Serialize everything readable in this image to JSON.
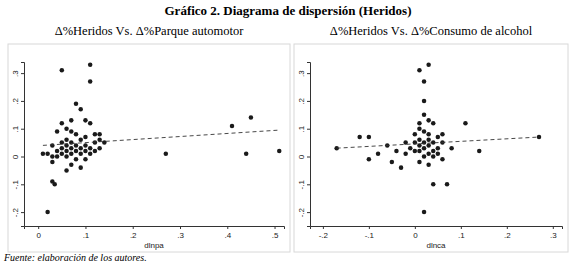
{
  "title": "Gráfico 2. Diagrama de dispersión (Heridos)",
  "source": "Fuente: elaboración de los autores.",
  "chart_data": [
    {
      "type": "scatter",
      "title": "Δ%Heridos Vs. Δ%Parque automotor",
      "xlabel": "dlnpa",
      "xlim": [
        -0.03,
        0.52
      ],
      "ylim": [
        -0.25,
        0.34
      ],
      "xticks": [
        0,
        {
          "value": 0.1,
          "label": ".1"
        },
        {
          "value": 0.2,
          "label": ".2"
        },
        {
          "value": 0.3,
          "label": ".3"
        },
        {
          "value": 0.4,
          "label": ".4"
        },
        {
          "value": 0.5,
          "label": ".5"
        }
      ],
      "yticks": [
        {
          "value": -0.2,
          "label": "-.2"
        },
        {
          "value": -0.1,
          "label": "-.1"
        },
        0,
        {
          "value": 0.1,
          "label": ".1"
        },
        {
          "value": 0.2,
          "label": ".2"
        },
        {
          "value": 0.3,
          "label": ".3"
        }
      ],
      "series": [
        {
          "type": "scatter",
          "marker": "circle",
          "color": "#1a1a1a",
          "x": [
            0.02,
            0.03,
            0.035,
            0.05,
            0.11,
            0.11,
            0.08,
            0.09,
            0.1,
            0.07,
            0.11,
            0.05,
            0.06,
            0.04,
            0.07,
            0.08,
            0.12,
            0.13,
            0.1,
            0.09,
            0.06,
            0.05,
            0.07,
            0.12,
            0.14,
            0.03,
            0.06,
            0.08,
            0.1,
            0.11,
            0.05,
            0.07,
            0.09,
            0.13,
            0.04,
            0.06,
            0.08,
            0.1,
            0.12,
            0.02,
            0.05,
            0.07,
            0.09,
            0.11,
            0.04,
            0.06,
            0.08,
            0.1,
            0.03,
            0.07,
            0.09,
            0.06,
            0.13,
            0.27,
            0.41,
            0.45,
            0.44,
            0.51,
            0.01,
            0.03
          ],
          "values": [
            -0.2,
            -0.09,
            -0.1,
            0.31,
            0.33,
            0.27,
            0.19,
            0.17,
            0.13,
            0.13,
            0.12,
            0.12,
            0.1,
            0.09,
            0.09,
            0.08,
            0.08,
            0.08,
            0.07,
            0.06,
            0.06,
            0.05,
            0.05,
            0.05,
            0.05,
            0.04,
            0.04,
            0.04,
            0.04,
            0.03,
            0.03,
            0.03,
            0.03,
            0.03,
            0.02,
            0.02,
            0.02,
            0.02,
            0.02,
            0.01,
            0.01,
            0.01,
            0.01,
            0.01,
            0,
            0,
            -0.01,
            -0.01,
            -0.02,
            -0.03,
            -0.04,
            -0.05,
            0.06,
            0.01,
            0.11,
            0.14,
            0.01,
            0.02,
            0.01,
            0
          ]
        },
        {
          "type": "line",
          "line_style": "dashed",
          "color": "#333333",
          "x": [
            0.01,
            0.51
          ],
          "values": [
            0.04,
            0.095
          ]
        }
      ]
    },
    {
      "type": "scatter",
      "title": "Δ%Heridos Vs. Δ%Consumo de alcohol",
      "xlabel": "dlnca",
      "xlim": [
        -0.228,
        0.32
      ],
      "ylim": [
        -0.25,
        0.34
      ],
      "xticks": [
        {
          "value": -0.2,
          "label": "-.2"
        },
        {
          "value": -0.1,
          "label": "-.1"
        },
        0,
        {
          "value": 0.1,
          "label": ".1"
        },
        {
          "value": 0.2,
          "label": ".2"
        },
        {
          "value": 0.3,
          "label": ".3"
        }
      ],
      "yticks": [
        {
          "value": -0.2,
          "label": "-.2"
        },
        {
          "value": -0.1,
          "label": "-.1"
        },
        0,
        {
          "value": 0.1,
          "label": ".1"
        },
        {
          "value": 0.2,
          "label": ".2"
        },
        {
          "value": 0.3,
          "label": ".3"
        }
      ],
      "series": [
        {
          "type": "scatter",
          "marker": "circle",
          "color": "#1a1a1a",
          "x": [
            -0.17,
            -0.12,
            -0.1,
            -0.1,
            -0.08,
            -0.06,
            -0.05,
            -0.04,
            -0.03,
            -0.02,
            -0.02,
            -0.01,
            0,
            0,
            0.01,
            0.03,
            0.02,
            0.02,
            0.02,
            0.03,
            0.01,
            0.04,
            0.01,
            0.02,
            0.03,
            0.05,
            0.01,
            0.03,
            0.02,
            0.04,
            0.06,
            0.01,
            0.03,
            0.05,
            0.02,
            0.04,
            0.01,
            0.03,
            0.05,
            0.02,
            0.04,
            0.06,
            0.01,
            0.03,
            0.04,
            0.07,
            0.02,
            0.11,
            0.08,
            0.14,
            0.27,
            0,
            0.06
          ],
          "values": [
            0.03,
            0.07,
            0.07,
            -0.01,
            0.01,
            0.04,
            -0.02,
            0.02,
            -0.04,
            0.05,
            0.01,
            0.03,
            0.08,
            0.05,
            0.31,
            0.33,
            0.27,
            0.2,
            0.15,
            0.13,
            0.12,
            0.12,
            0.1,
            0.09,
            0.08,
            0.07,
            0.06,
            0.06,
            0.05,
            0.05,
            0.05,
            0.04,
            0.04,
            0.03,
            0.03,
            0.02,
            0.02,
            0.01,
            0.01,
            0,
            0,
            -0.01,
            -0.02,
            -0.03,
            -0.1,
            -0.1,
            -0.2,
            0.12,
            0.03,
            0.02,
            0.07,
            0.02,
            0.08
          ]
        },
        {
          "type": "line",
          "line_style": "dashed",
          "color": "#333333",
          "x": [
            -0.17,
            0.27
          ],
          "values": [
            0.03,
            0.07
          ]
        }
      ]
    }
  ]
}
